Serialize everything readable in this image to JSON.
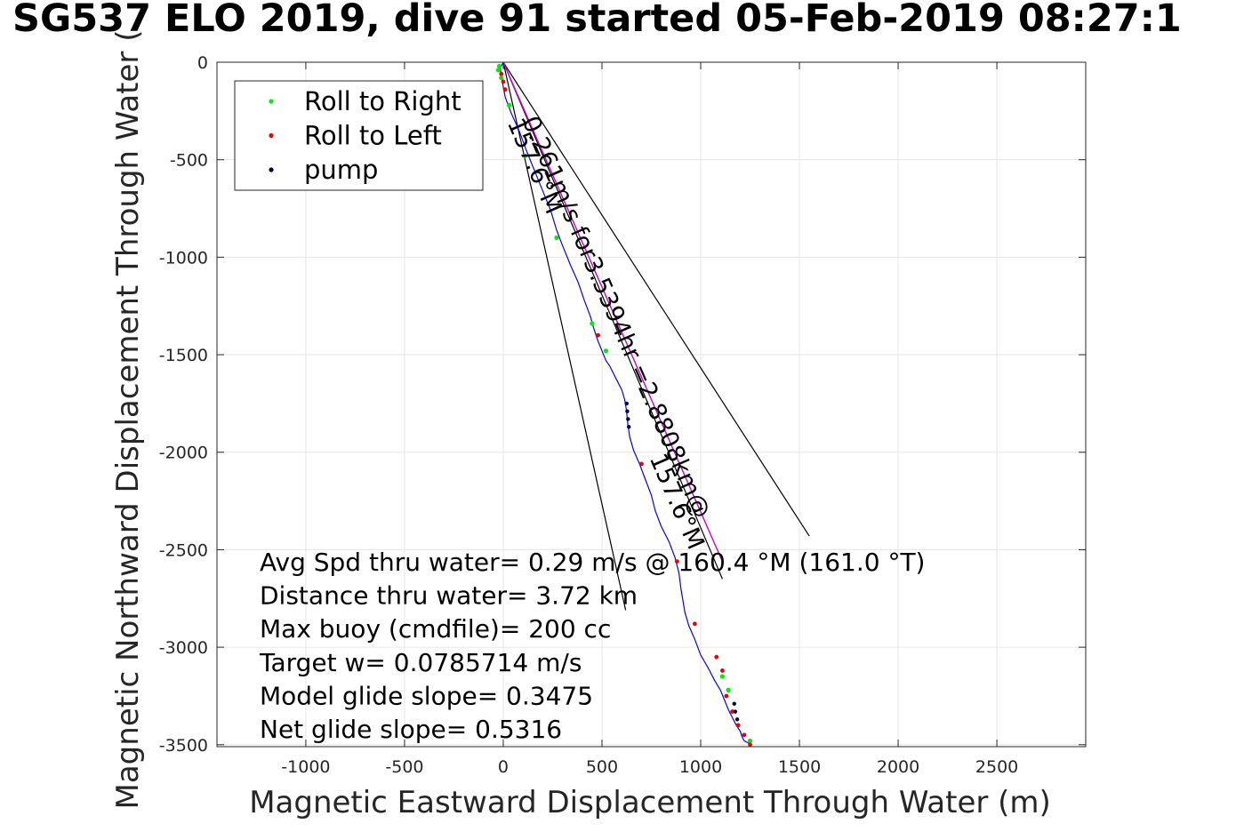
{
  "chart_data": {
    "type": "line",
    "title": "SG537 ELO 2019, dive 91 started 05-Feb-2019 08:27:1",
    "xlabel": "Magnetic Eastward Displacement Through Water (m)",
    "ylabel": "Magnetic Northward Displacement Through Water (",
    "xlim": [
      -1450,
      2950
    ],
    "ylim": [
      -3510,
      0
    ],
    "grid": true,
    "xticks": [
      -1000,
      -500,
      0,
      500,
      1000,
      1500,
      2000,
      2500
    ],
    "xtick_labels": [
      "-1000",
      "-500",
      "0",
      "500",
      "1000",
      "1500",
      "2000",
      "2500"
    ],
    "yticks": [
      0,
      -500,
      -1000,
      -1500,
      -2000,
      -2500,
      -3000,
      -3500
    ],
    "ytick_labels": [
      "0",
      "-500",
      "-1000",
      "-1500",
      "-2000",
      "-2500",
      "-3000",
      "-3500"
    ],
    "legend": {
      "placement": "top-left",
      "entries": [
        {
          "label": "Roll to Right",
          "color": "#00ee00"
        },
        {
          "label": "Roll to Left",
          "color": "#ee0000"
        },
        {
          "label": "pump",
          "color": "#000033"
        }
      ]
    },
    "track": {
      "name": "glider track",
      "color": "#0000ff",
      "x": [
        0,
        -15,
        -5,
        10,
        40,
        80,
        120,
        160,
        200,
        240,
        270,
        300,
        340,
        380,
        410,
        440,
        460,
        480,
        500,
        520,
        540,
        560,
        580,
        600,
        615,
        625,
        630,
        640,
        660,
        690,
        720,
        750,
        770,
        800,
        840,
        870,
        890,
        900,
        910,
        920,
        940,
        970,
        1000,
        1040,
        1070,
        1100,
        1120,
        1140,
        1160,
        1180,
        1200,
        1210,
        1220,
        1240,
        1255
      ],
      "y": [
        0,
        -30,
        -100,
        -180,
        -260,
        -350,
        -460,
        -560,
        -660,
        -760,
        -860,
        -940,
        -1040,
        -1130,
        -1220,
        -1300,
        -1370,
        -1430,
        -1480,
        -1530,
        -1560,
        -1600,
        -1640,
        -1680,
        -1730,
        -1790,
        -1850,
        -1920,
        -1990,
        -2060,
        -2140,
        -2220,
        -2300,
        -2380,
        -2460,
        -2540,
        -2620,
        -2700,
        -2760,
        -2820,
        -2890,
        -2960,
        -3040,
        -3110,
        -3170,
        -3220,
        -3270,
        -3320,
        -3360,
        -3400,
        -3430,
        -3460,
        -3480,
        -3490,
        -3500
      ]
    },
    "roll_right": {
      "x": [
        -20,
        -25,
        -10,
        30,
        110,
        270,
        450,
        520,
        1110,
        1140,
        1250
      ],
      "y": [
        -20,
        -40,
        -80,
        -220,
        -480,
        -900,
        -1340,
        -1480,
        -3150,
        -3220,
        -3480
      ]
    },
    "roll_left": {
      "x": [
        -10,
        0,
        10,
        480,
        700,
        880,
        970,
        1080,
        1110,
        1130,
        1160,
        1190,
        1220,
        1250
      ],
      "y": [
        -60,
        -100,
        -140,
        -1400,
        -2060,
        -2560,
        -2880,
        -3050,
        -3120,
        -3250,
        -3330,
        -3400,
        -3450,
        -3500
      ]
    },
    "pump": {
      "x": [
        625,
        628,
        632,
        636,
        1170,
        1175,
        1185
      ],
      "y": [
        -1750,
        -1790,
        -1830,
        -1870,
        -3290,
        -3330,
        -3370
      ]
    },
    "heading_line": {
      "color": "#cc00cc",
      "x": [
        0,
        1110
      ],
      "y": [
        0,
        -2560
      ]
    },
    "wedge_lines": [
      {
        "x": [
          0,
          1550
        ],
        "y": [
          0,
          -2430
        ]
      },
      {
        "x": [
          0,
          1110
        ],
        "y": [
          0,
          -2650
        ]
      },
      {
        "x": [
          0,
          620
        ],
        "y": [
          0,
          -2810
        ]
      }
    ],
    "annotations": [
      {
        "text": "0.261m/s for3.5394hr =2.8808km@",
        "x": 95,
        "y": -300,
        "angle": 66.5
      },
      {
        "text": "157.6°M",
        "x": 20,
        "y": -310,
        "angle": 66.5
      },
      {
        "text": "157.6°M",
        "x": 740,
        "y": -2030,
        "angle": 66.5
      }
    ],
    "stats": [
      "Avg Spd thru water=  0.29 m/s @ 160.4 °M (161.0 °T)",
      "Distance thru water=  3.72 km",
      "Max buoy (cmdfile)= 200 cc",
      "Target w= 0.0785714 m/s",
      "Model glide slope= 0.3475",
      "Net glide slope= 0.5316"
    ]
  }
}
